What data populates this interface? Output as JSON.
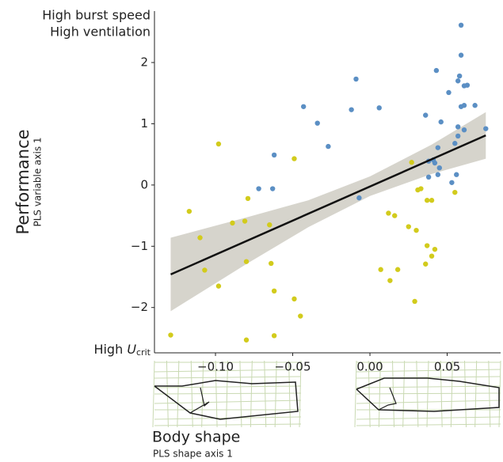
{
  "chart_data": {
    "type": "scatter",
    "y_label": "Performance",
    "y_sublabel": "PLS variable axis 1",
    "x_label": "Body shape",
    "x_sublabel": "PLS shape axis 1",
    "annotations": {
      "top": [
        "High burst speed",
        "High ventilation"
      ],
      "bottom": {
        "text": "High",
        "symbol": "U",
        "subscript": "crit"
      }
    },
    "xlim": [
      -0.1395,
      0.0846
    ],
    "ylim": [
      -2.74,
      2.84
    ],
    "xticks": [
      {
        "value": -0.1,
        "label": "−0.10"
      },
      {
        "value": -0.05,
        "label": "−0.05"
      },
      {
        "value": 0,
        "label": "0.00"
      },
      0.05
    ],
    "yticks": [
      {
        "value": -2,
        "label": "−2"
      },
      {
        "value": -1,
        "label": "−1"
      },
      0,
      1,
      2
    ],
    "series": [
      {
        "color": "#5b8fc4",
        "x": [
          0.059,
          0.059,
          0.058,
          0.043,
          -0.009,
          0.057,
          0.063,
          0.061,
          0.051,
          -0.043,
          0.006,
          -0.012,
          0.059,
          0.061,
          0.068,
          0.036,
          -0.034,
          0.046,
          0.057,
          0.061,
          0.075,
          0.057,
          -0.027,
          0.055,
          0.044,
          -0.062,
          0.041,
          0.038,
          0.042,
          0.045,
          0.038,
          0.044,
          0.056,
          0.053,
          -0.072,
          -0.063,
          -0.007
        ],
        "values": [
          2.61,
          2.12,
          1.78,
          1.87,
          1.73,
          1.7,
          1.63,
          1.62,
          1.51,
          1.28,
          1.26,
          1.23,
          1.28,
          1.3,
          1.3,
          1.14,
          1.01,
          1.03,
          0.95,
          0.9,
          0.92,
          0.8,
          0.63,
          0.68,
          0.61,
          0.49,
          0.41,
          0.39,
          0.36,
          0.28,
          0.13,
          0.17,
          0.17,
          0.04,
          -0.06,
          -0.06,
          -0.21
        ]
      },
      {
        "color": "#d2cb1c",
        "x": [
          -0.098,
          -0.049,
          0.027,
          0.031,
          0.033,
          -0.117,
          -0.079,
          0.037,
          0.04,
          0.055,
          0.012,
          0.016,
          -0.089,
          -0.081,
          -0.065,
          0.025,
          0.03,
          -0.11,
          0.037,
          0.042,
          0.04,
          -0.08,
          -0.064,
          0.036,
          -0.107,
          0.007,
          0.018,
          0.013,
          -0.098,
          -0.062,
          -0.049,
          0.029,
          -0.045,
          -0.129,
          -0.062,
          -0.08
        ],
        "values": [
          0.67,
          0.43,
          0.37,
          -0.08,
          -0.06,
          -0.43,
          -0.22,
          -0.25,
          -0.25,
          -0.12,
          -0.46,
          -0.5,
          -0.62,
          -0.59,
          -0.65,
          -0.68,
          -0.74,
          -0.86,
          -0.99,
          -1.05,
          -1.16,
          -1.25,
          -1.28,
          -1.29,
          -1.39,
          -1.38,
          -1.38,
          -1.56,
          -1.65,
          -1.73,
          -1.86,
          -1.9,
          -2.14,
          -2.45,
          -2.46,
          -2.53
        ]
      }
    ],
    "fit": {
      "color": "#111111",
      "x": [
        -0.129,
        0.075
      ],
      "values": [
        -1.46,
        0.81
      ]
    },
    "band": {
      "color": "#d6d4cc",
      "x": [
        -0.129,
        -0.08,
        -0.04,
        0,
        0.04,
        0.075
      ],
      "lower": [
        -2.06,
        -1.29,
        -0.69,
        -0.18,
        0.18,
        0.43
      ],
      "upper": [
        -0.86,
        -0.53,
        -0.25,
        0.14,
        0.66,
        1.19
      ]
    }
  }
}
